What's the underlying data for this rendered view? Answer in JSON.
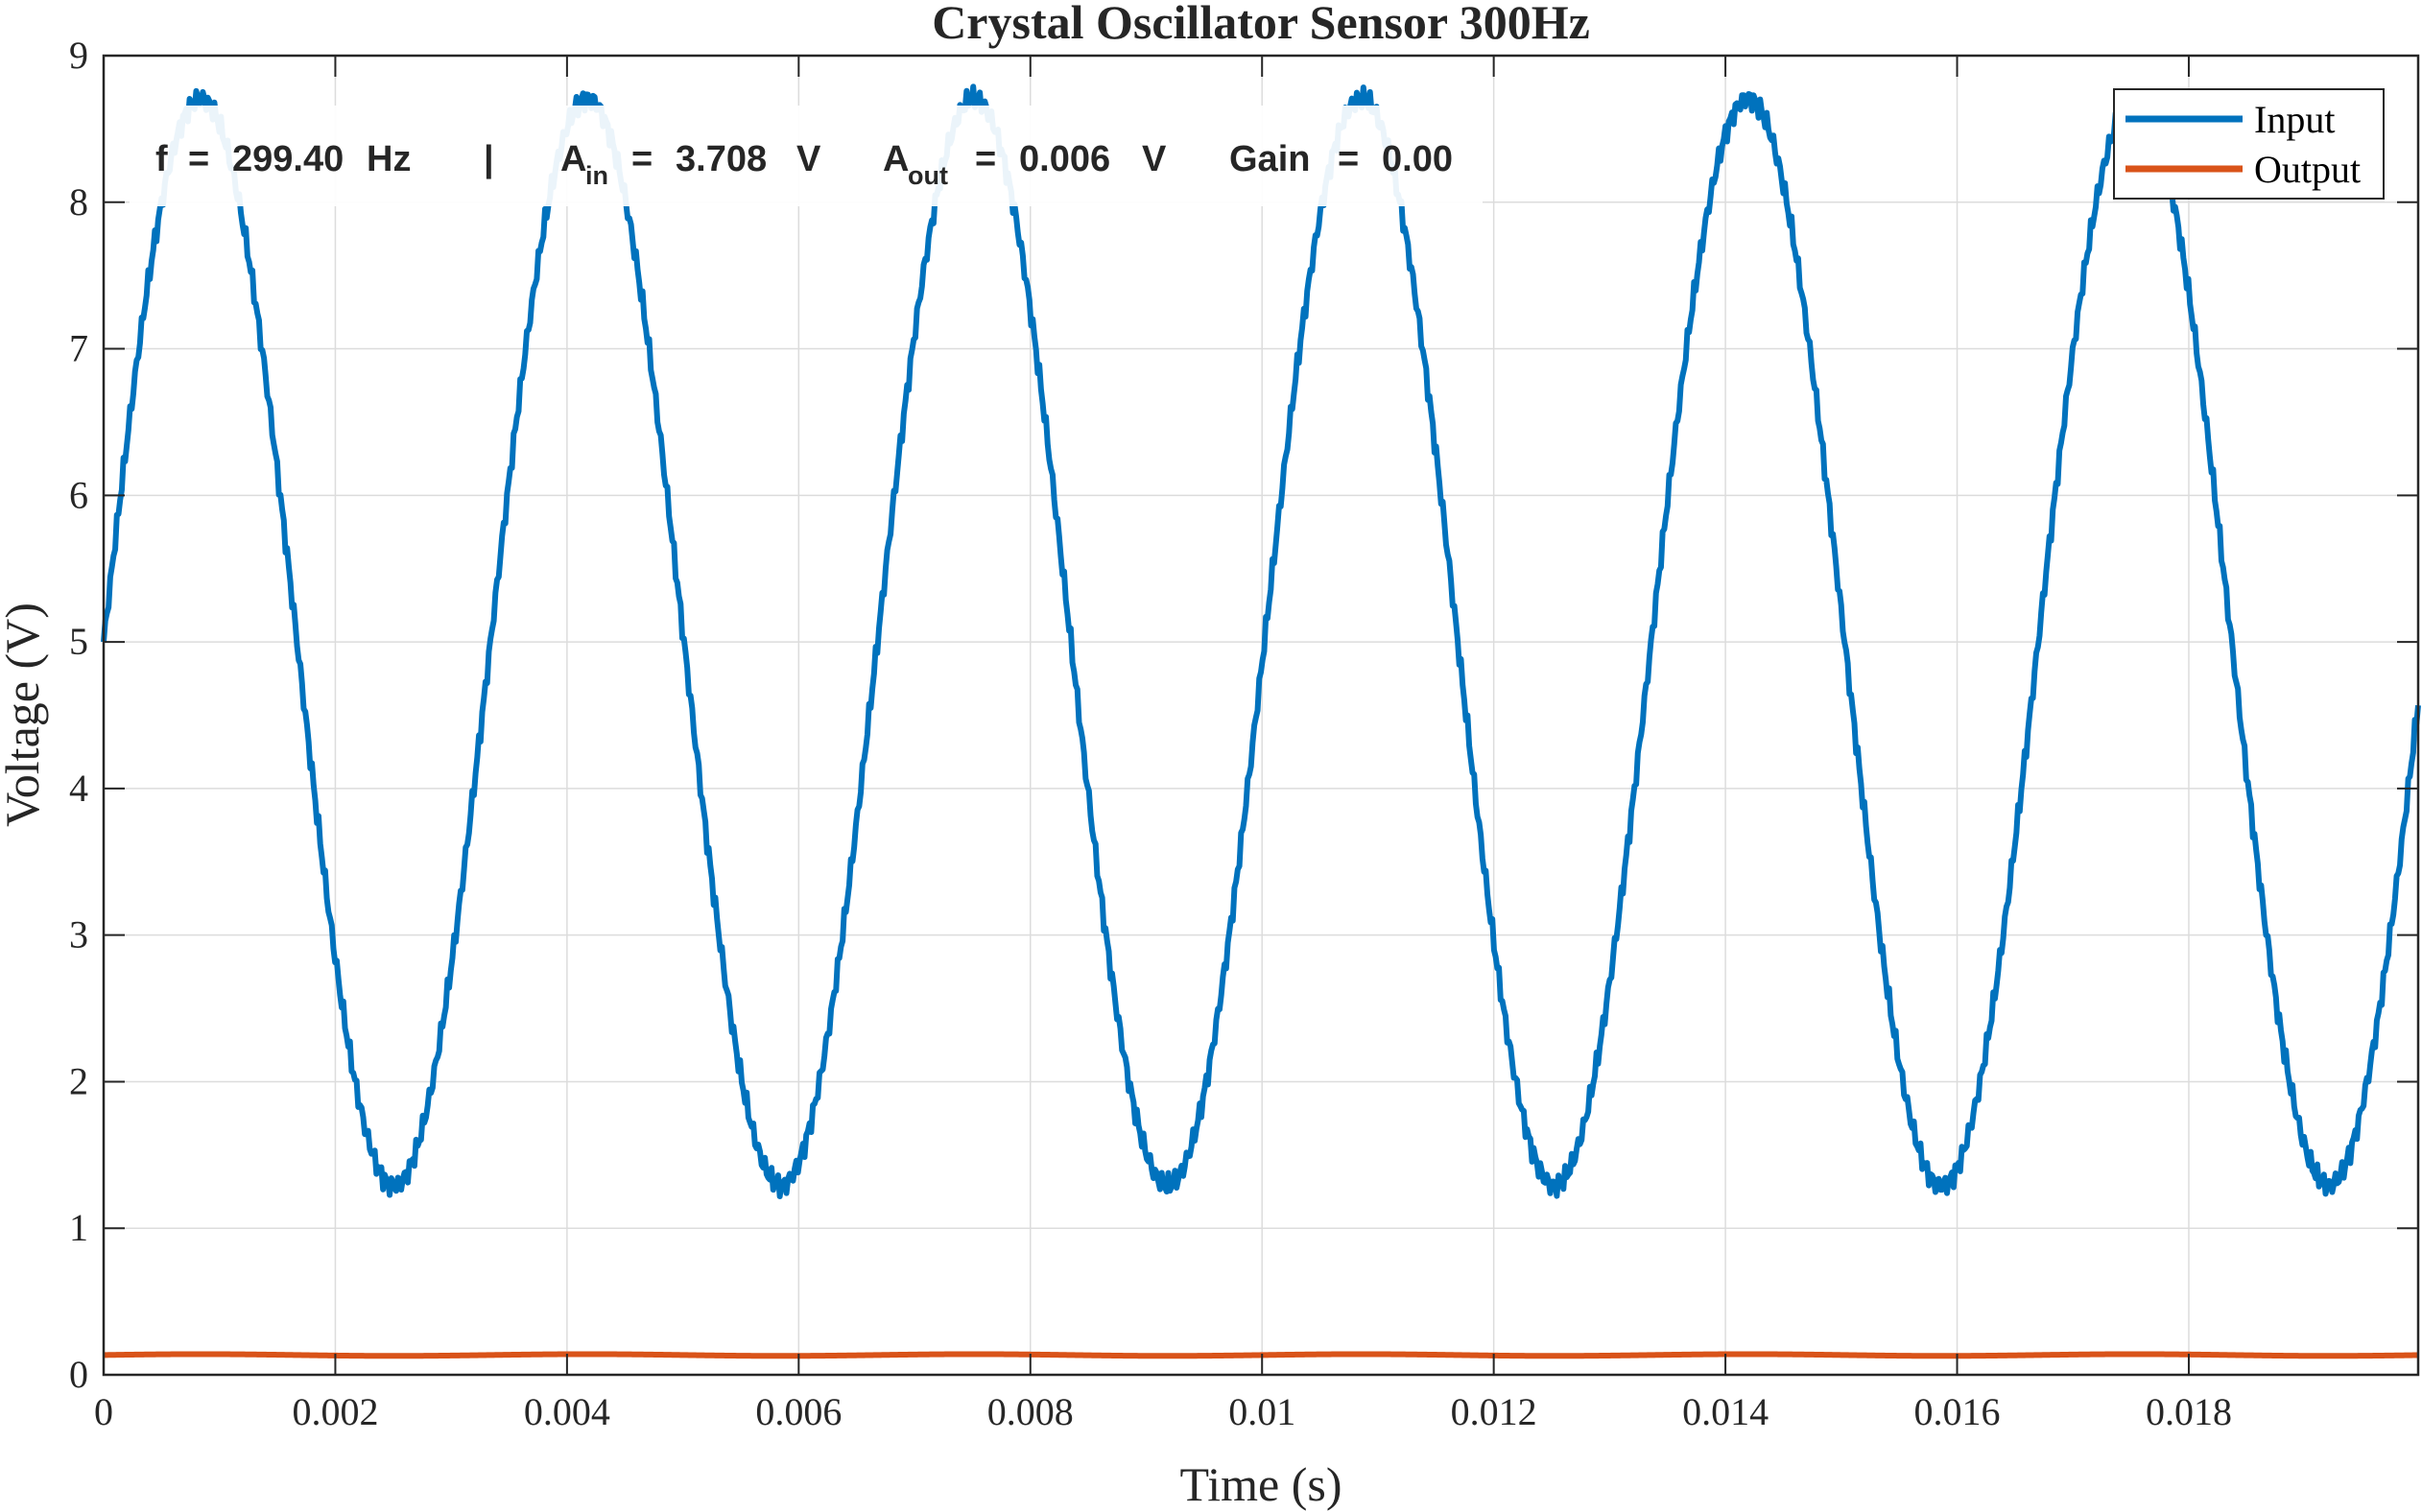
{
  "chart_data": {
    "type": "line",
    "title": "Crystal Oscillator Sensor 300Hz",
    "xlabel": "Time (s)",
    "ylabel": "Voltage (V)",
    "xlim": [
      0,
      0.01998
    ],
    "ylim": [
      0,
      9
    ],
    "x_ticks": [
      0,
      0.002,
      0.004,
      0.006,
      0.008,
      0.01,
      0.012,
      0.014,
      0.016,
      0.018
    ],
    "x_tick_labels": [
      "0",
      "0.002",
      "0.004",
      "0.006",
      "0.008",
      "0.01",
      "0.012",
      "0.014",
      "0.016",
      "0.018"
    ],
    "y_ticks": [
      0,
      1,
      2,
      3,
      4,
      5,
      6,
      7,
      8,
      9
    ],
    "y_tick_labels": [
      "0",
      "1",
      "2",
      "3",
      "4",
      "5",
      "6",
      "7",
      "8",
      "9"
    ],
    "grid": true,
    "legend_position": "top-right",
    "series": [
      {
        "name": "Input",
        "color": "#0072BD",
        "model": "sine",
        "offset": 5.0,
        "amplitude": 3.708,
        "frequency_hz": 299.4,
        "phase_rad": 0.0,
        "x": [
          0,
          0.00084,
          0.00251,
          0.00418,
          0.00585,
          0.00752,
          0.00919,
          0.01086,
          0.01253,
          0.0142,
          0.01587,
          0.01754,
          0.01921,
          0.01998
        ],
        "y": [
          5.35,
          8.72,
          1.28,
          8.68,
          1.28,
          8.72,
          1.28,
          8.68,
          1.25,
          8.7,
          1.3,
          8.6,
          1.22,
          5.05
        ]
      },
      {
        "name": "Output",
        "color": "#D95319",
        "model": "sine",
        "offset": 0.135,
        "amplitude": 0.006,
        "frequency_hz": 299.4,
        "phase_rad": 0.0,
        "x": [
          0,
          0.01998
        ],
        "y": [
          0.13,
          0.13
        ]
      }
    ]
  },
  "annotation": {
    "freq_label": "f",
    "freq_eq": "=",
    "freq_value": "299.40",
    "freq_unit": "Hz",
    "separator": "|",
    "ain_label": "A",
    "ain_sub": "in",
    "ain_eq": "=",
    "ain_value": "3.708",
    "ain_unit": "V",
    "aout_label": "A",
    "aout_sub": "out",
    "aout_eq": "=",
    "aout_value": "0.006",
    "aout_unit": "V",
    "gain_label": "Gain",
    "gain_eq": "=",
    "gain_value": "0.00"
  }
}
